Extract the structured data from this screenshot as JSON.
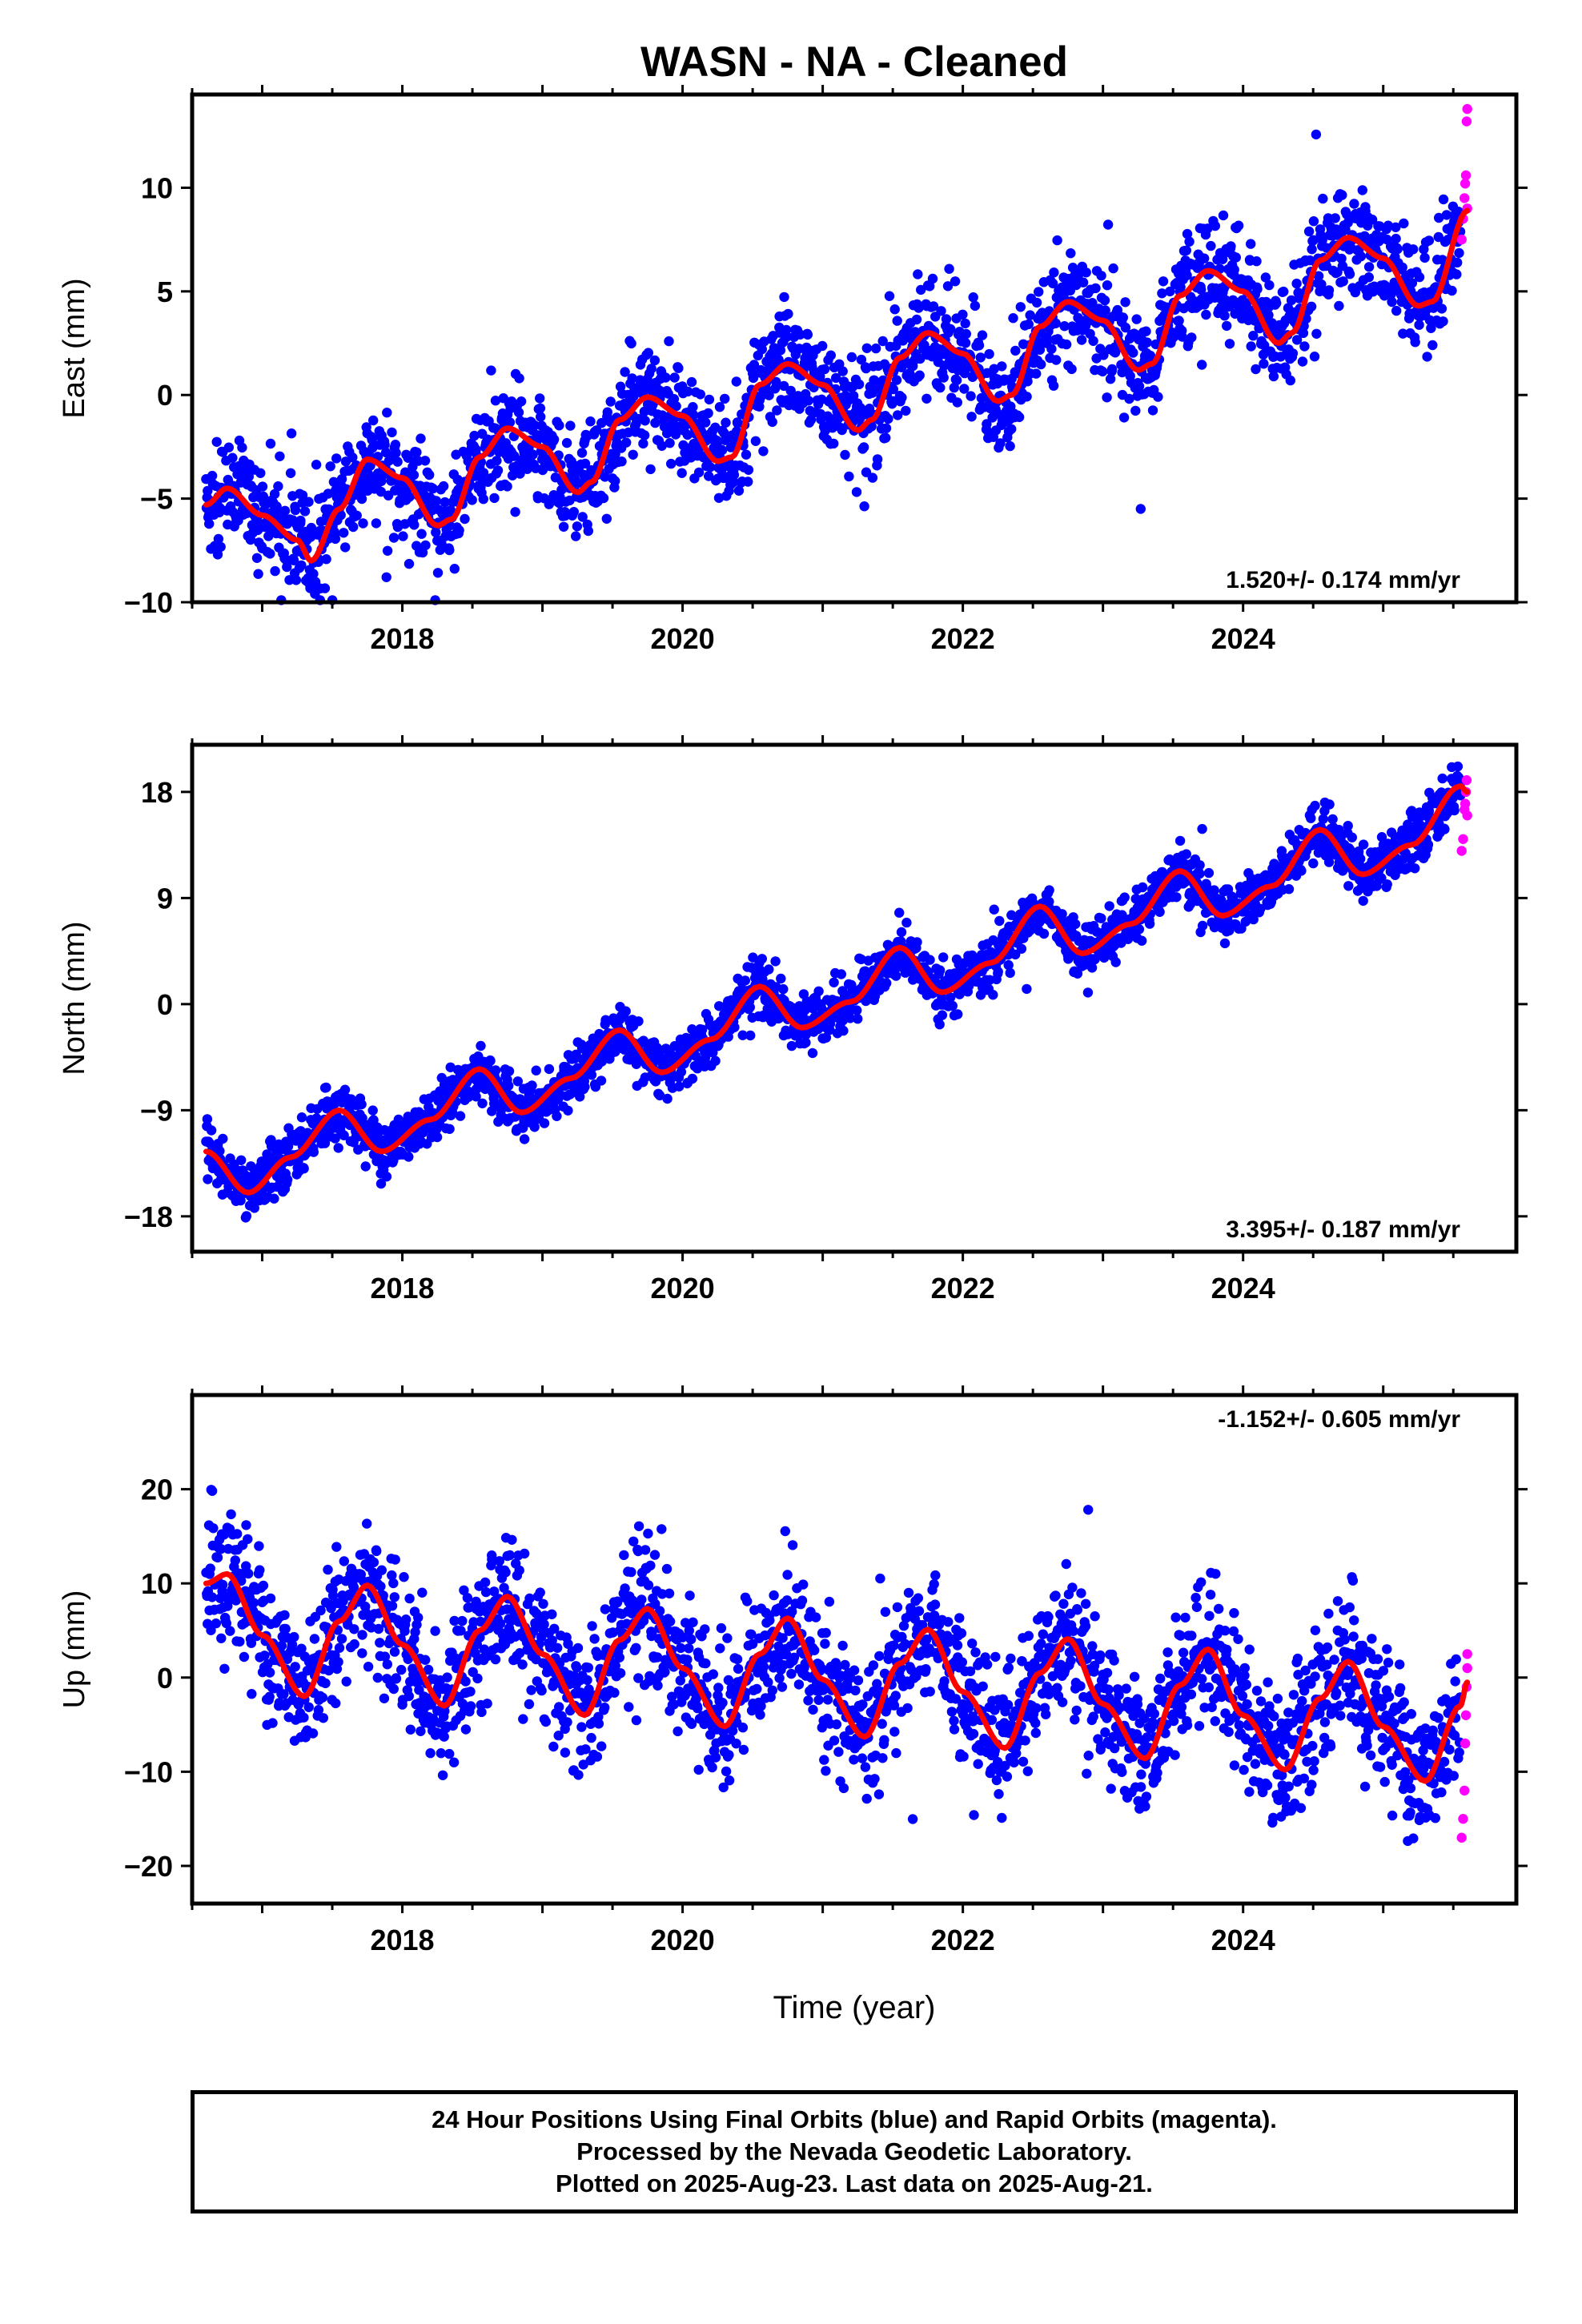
{
  "title": "WASN  - NA - Cleaned",
  "x_axis_label": "Time (year)",
  "footer": {
    "line1": "24 Hour Positions Using Final Orbits (blue) and Rapid Orbits (magenta).",
    "line2": "Processed by the Nevada Geodetic Laboratory.",
    "line3": "Plotted on 2025-Aug-23. Last data on 2025-Aug-21."
  },
  "colors": {
    "final_orbits": "#0000ff",
    "rapid_orbits": "#ff00ff",
    "fit": "#ff0000"
  },
  "chart_data": [
    {
      "type": "scatter",
      "ylabel": "East (mm)",
      "xlim": [
        2016.5,
        2025.95
      ],
      "ylim": [
        -10,
        14.5
      ],
      "xticks": [
        2018,
        2020,
        2022,
        2024
      ],
      "yticks": [
        -10,
        -5,
        0,
        5,
        10
      ],
      "rate_label": "1.520+/- 0.174 mm/yr",
      "rate_position": "bottom-right",
      "series": [
        {
          "name": "Final Orbits",
          "color": "#0000ff",
          "x_range": [
            2016.6,
            2025.55
          ],
          "trend_mm_per_yr": 1.52,
          "offset_mm": -5.5,
          "annual_amplitude_mm": 2.0,
          "scatter_mm": 1.3
        },
        {
          "name": "Rapid Orbits",
          "color": "#ff00ff",
          "x": [
            2025.56,
            2025.57,
            2025.58,
            2025.585,
            2025.59,
            2025.595,
            2025.6,
            2025.6
          ],
          "y": [
            7.5,
            8.5,
            9.5,
            10.2,
            10.6,
            13.2,
            13.8,
            9.0
          ]
        }
      ],
      "fit": {
        "color": "#ff0000",
        "x": [
          2016.6,
          2016.75,
          2017.0,
          2017.25,
          2017.35,
          2017.55,
          2017.75,
          2018.0,
          2018.25,
          2018.35,
          2018.55,
          2018.75,
          2019.0,
          2019.25,
          2019.35,
          2019.55,
          2019.75,
          2020.0,
          2020.25,
          2020.35,
          2020.55,
          2020.75,
          2021.0,
          2021.25,
          2021.35,
          2021.55,
          2021.75,
          2022.0,
          2022.25,
          2022.35,
          2022.55,
          2022.75,
          2023.0,
          2023.25,
          2023.35,
          2023.55,
          2023.75,
          2024.0,
          2024.25,
          2024.35,
          2024.55,
          2024.75,
          2025.0,
          2025.25,
          2025.35,
          2025.6
        ],
        "y": [
          -5.3,
          -4.5,
          -5.8,
          -7.0,
          -8.0,
          -5.5,
          -3.1,
          -4.0,
          -6.3,
          -6.0,
          -3.0,
          -1.6,
          -2.5,
          -4.7,
          -4.2,
          -1.2,
          -0.1,
          -1.0,
          -3.2,
          -3.0,
          0.5,
          1.5,
          0.5,
          -1.7,
          -1.2,
          1.8,
          3.0,
          2.0,
          -0.3,
          0.0,
          3.3,
          4.5,
          3.6,
          1.2,
          1.5,
          4.8,
          6.0,
          5.0,
          2.5,
          3.0,
          6.5,
          7.6,
          6.6,
          4.3,
          4.5,
          8.9
        ]
      }
    },
    {
      "type": "scatter",
      "ylabel": "North (mm)",
      "xlim": [
        2016.5,
        2025.95
      ],
      "ylim": [
        -21,
        22
      ],
      "xticks": [
        2018,
        2020,
        2022,
        2024
      ],
      "yticks": [
        -18,
        -9,
        0,
        9,
        18
      ],
      "rate_label": "3.395+/- 0.187 mm/yr",
      "rate_position": "bottom-right",
      "series": [
        {
          "name": "Final Orbits",
          "color": "#0000ff",
          "x_range": [
            2016.6,
            2025.55
          ],
          "trend_mm_per_yr": 3.395,
          "offset_mm": -14.5,
          "annual_amplitude_mm": 2.2,
          "scatter_mm": 1.1
        },
        {
          "name": "Rapid Orbits",
          "color": "#ff00ff",
          "x": [
            2025.56,
            2025.57,
            2025.58,
            2025.585,
            2025.59,
            2025.595,
            2025.6
          ],
          "y": [
            13.0,
            14.0,
            16.5,
            17.0,
            18.0,
            19.0,
            16.0
          ]
        }
      ],
      "fit": {
        "color": "#ff0000",
        "x": [
          2016.6,
          2016.9,
          2017.2,
          2017.55,
          2017.85,
          2018.2,
          2018.55,
          2018.85,
          2019.2,
          2019.55,
          2019.85,
          2020.2,
          2020.55,
          2020.85,
          2021.2,
          2021.55,
          2021.85,
          2022.2,
          2022.55,
          2022.85,
          2023.2,
          2023.55,
          2023.85,
          2024.2,
          2024.55,
          2024.85,
          2025.2,
          2025.55,
          2025.6
        ],
        "y": [
          -12.5,
          -16.0,
          -13.0,
          -9.0,
          -12.5,
          -9.8,
          -5.5,
          -9.2,
          -6.3,
          -2.2,
          -5.8,
          -3.0,
          1.5,
          -2.0,
          0.2,
          4.8,
          1.0,
          3.5,
          8.3,
          4.3,
          6.8,
          11.3,
          7.5,
          10.0,
          14.8,
          11.0,
          13.5,
          18.5,
          18.0
        ]
      }
    },
    {
      "type": "scatter",
      "ylabel": "Up (mm)",
      "xlim": [
        2016.5,
        2025.95
      ],
      "ylim": [
        -24,
        30
      ],
      "xticks": [
        2018,
        2020,
        2022,
        2024
      ],
      "yticks": [
        -20,
        -10,
        0,
        10,
        20
      ],
      "rate_label": "-1.152+/- 0.605 mm/yr",
      "rate_position": "top-right",
      "series": [
        {
          "name": "Final Orbits",
          "color": "#0000ff",
          "x_range": [
            2016.6,
            2025.55
          ],
          "trend_mm_per_yr": -1.152,
          "offset_mm": 4.5,
          "annual_amplitude_mm": 6.0,
          "scatter_mm": 3.5
        },
        {
          "name": "Rapid Orbits",
          "color": "#ff00ff",
          "x": [
            2025.56,
            2025.57,
            2025.58,
            2025.585,
            2025.59,
            2025.595,
            2025.6,
            2025.6
          ],
          "y": [
            -17.0,
            -15.0,
            -12.0,
            -7.0,
            -4.0,
            -1.0,
            1.0,
            2.5
          ]
        }
      ],
      "fit": {
        "color": "#ff0000",
        "x": [
          2016.6,
          2016.75,
          2017.0,
          2017.3,
          2017.55,
          2017.75,
          2018.0,
          2018.3,
          2018.55,
          2018.75,
          2019.0,
          2019.3,
          2019.55,
          2019.75,
          2020.0,
          2020.3,
          2020.55,
          2020.75,
          2021.0,
          2021.3,
          2021.55,
          2021.75,
          2022.0,
          2022.3,
          2022.55,
          2022.75,
          2023.0,
          2023.3,
          2023.55,
          2023.75,
          2024.0,
          2024.3,
          2024.55,
          2024.75,
          2025.0,
          2025.3,
          2025.55,
          2025.6
        ],
        "y": [
          10.0,
          11.0,
          4.5,
          -2.0,
          6.0,
          9.8,
          3.5,
          -3.0,
          5.0,
          8.6,
          2.5,
          -4.0,
          4.0,
          7.3,
          1.0,
          -5.2,
          2.5,
          6.3,
          -0.2,
          -6.3,
          1.5,
          5.1,
          -1.5,
          -7.5,
          0.5,
          4.1,
          -2.8,
          -8.6,
          -0.8,
          3.0,
          -4.0,
          -9.8,
          -2.2,
          1.7,
          -5.2,
          -11.0,
          -3.0,
          -0.5
        ]
      }
    }
  ]
}
